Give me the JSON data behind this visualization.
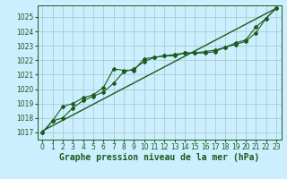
{
  "background_color": "#cceeff",
  "plot_bg_color": "#cceeff",
  "grid_color": "#aacccc",
  "line_color": "#1a5c1a",
  "xlabel": "Graphe pression niveau de la mer (hPa)",
  "xlabel_fontsize": 7,
  "xlim": [
    -0.5,
    23.5
  ],
  "ylim": [
    1016.5,
    1025.8
  ],
  "yticks": [
    1017,
    1018,
    1019,
    1020,
    1021,
    1022,
    1023,
    1024,
    1025
  ],
  "xticks": [
    0,
    1,
    2,
    3,
    4,
    5,
    6,
    7,
    8,
    9,
    10,
    11,
    12,
    13,
    14,
    15,
    16,
    17,
    18,
    19,
    20,
    21,
    22,
    23
  ],
  "series1_x": [
    0,
    1,
    2,
    3,
    4,
    5,
    6,
    7,
    8,
    9,
    10,
    11,
    12,
    13,
    14,
    15,
    16,
    17,
    18,
    19,
    20,
    21,
    22,
    23
  ],
  "series1_y": [
    1017.0,
    1017.8,
    1018.0,
    1018.7,
    1019.2,
    1019.5,
    1019.8,
    1020.4,
    1021.2,
    1021.4,
    1021.9,
    1022.2,
    1022.3,
    1022.3,
    1022.5,
    1022.5,
    1022.5,
    1022.6,
    1022.9,
    1023.1,
    1023.3,
    1023.9,
    1024.9,
    1025.6
  ],
  "series2_x": [
    0,
    1,
    2,
    3,
    4,
    5,
    6,
    7,
    8,
    9,
    10,
    11,
    12,
    13,
    14,
    15,
    16,
    17,
    18,
    19,
    20,
    21,
    22,
    23
  ],
  "series2_y": [
    1017.0,
    1017.8,
    1018.8,
    1019.0,
    1019.4,
    1019.6,
    1020.1,
    1021.4,
    1021.3,
    1021.3,
    1022.1,
    1022.2,
    1022.3,
    1022.4,
    1022.5,
    1022.5,
    1022.6,
    1022.7,
    1022.9,
    1023.2,
    1023.4,
    1024.3,
    1024.9,
    1025.6
  ],
  "trend_x": [
    0,
    23
  ],
  "trend_y": [
    1017.1,
    1025.6
  ],
  "tick_fontsize": 5.5,
  "marker": "D",
  "markersize": 2.0,
  "linewidth": 0.8,
  "trend_linewidth": 1.0
}
